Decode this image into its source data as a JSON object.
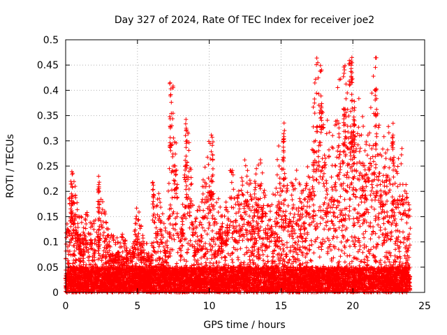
{
  "chart_data": {
    "type": "scatter",
    "title": "Day 327 of 2024, Rate Of TEC Index for receiver joe2",
    "xlabel": "GPS time / hours",
    "ylabel": "ROTI / TECUs",
    "xlim": [
      0,
      25
    ],
    "ylim": [
      0,
      0.5
    ],
    "x_ticks": [
      "0",
      "5",
      "10",
      "15",
      "20",
      "25"
    ],
    "y_ticks": [
      "0",
      "0.05",
      "0.1",
      "0.15",
      "0.2",
      "0.25",
      "0.3",
      "0.35",
      "0.4",
      "0.45",
      "0.5"
    ],
    "grid": true,
    "marker": "plus",
    "color": "#ff0000",
    "point_count_approx": 20000,
    "upper_envelope": {
      "x": [
        0,
        0.5,
        1,
        1.5,
        2,
        2.5,
        3,
        3.5,
        4,
        4.5,
        5,
        5.5,
        6,
        6.5,
        7,
        7.5,
        8,
        8.5,
        9,
        9.5,
        10,
        10.5,
        11,
        11.5,
        12,
        12.5,
        13,
        13.5,
        14,
        14.5,
        15,
        15.5,
        16,
        16.5,
        17,
        17.5,
        18,
        18.5,
        19,
        19.5,
        20,
        20.5,
        21,
        21.5,
        22,
        22.5,
        23,
        23.5,
        24
      ],
      "y": [
        0.16,
        0.24,
        0.15,
        0.16,
        0.14,
        0.2,
        0.12,
        0.11,
        0.12,
        0.09,
        0.18,
        0.1,
        0.1,
        0.22,
        0.12,
        0.43,
        0.12,
        0.35,
        0.14,
        0.22,
        0.32,
        0.2,
        0.15,
        0.27,
        0.2,
        0.28,
        0.21,
        0.28,
        0.19,
        0.2,
        0.34,
        0.2,
        0.25,
        0.2,
        0.27,
        0.48,
        0.4,
        0.3,
        0.42,
        0.45,
        0.47,
        0.37,
        0.32,
        0.47,
        0.3,
        0.34,
        0.26,
        0.29,
        0.16
      ]
    },
    "spikes": [
      {
        "x": 0.4,
        "y": 0.24
      },
      {
        "x": 2.3,
        "y": 0.23
      },
      {
        "x": 6.1,
        "y": 0.22
      },
      {
        "x": 7.3,
        "y": 0.43
      },
      {
        "x": 8.4,
        "y": 0.35
      },
      {
        "x": 10.2,
        "y": 0.32
      },
      {
        "x": 15.2,
        "y": 0.34
      },
      {
        "x": 17.8,
        "y": 0.48
      },
      {
        "x": 19.4,
        "y": 0.45
      },
      {
        "x": 19.9,
        "y": 0.47
      },
      {
        "x": 20.1,
        "y": 0.37
      },
      {
        "x": 21.6,
        "y": 0.47
      },
      {
        "x": 22.8,
        "y": 0.34
      }
    ]
  }
}
